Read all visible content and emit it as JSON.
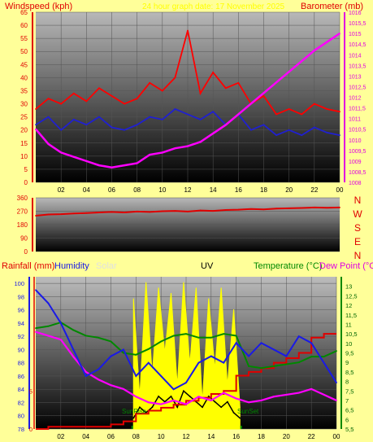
{
  "colors": {
    "background": "#ffff99",
    "wind": "#ff0000",
    "gust": "#ff0000",
    "avg_wind": "#2020d0",
    "barometer": "#ff00ff",
    "direction": "#e00000",
    "rain": "#e00000",
    "humidity": "#1a1ae6",
    "solar": "#ffff00",
    "uv": "#000000",
    "temperature": "#008800",
    "dewpoint": "#ff00ff",
    "title": "#ffff00"
  },
  "header": {
    "title": "24 hour graph date: 17 November 2025",
    "windspeed_label": "Windspeed (kph)",
    "barometer_label": "Barometer (mb)"
  },
  "compass_letters": [
    "N",
    "W",
    "S",
    "E",
    "N"
  ],
  "bottom_labels": {
    "rainfall": "Rainfall (mm)",
    "humidity": "Humidity",
    "solar": "Solar",
    "uv": "UV",
    "temperature": "Temperature (°C)",
    "dewpoint": "Dew Point (°C)",
    "sunrise": "SunRise",
    "sunset": "SunSet"
  },
  "chart_data": [
    {
      "type": "line",
      "title": "24 hour graph date: 17 November 2025",
      "x_ticks": [
        "02",
        "04",
        "06",
        "08",
        "10",
        "12",
        "14",
        "16",
        "18",
        "20",
        "22",
        "00"
      ],
      "ylabel": "Windspeed (kph)",
      "ylim": [
        0,
        65
      ],
      "y_ticks": [
        0,
        5,
        10,
        15,
        20,
        25,
        30,
        35,
        40,
        45,
        50,
        55,
        60,
        65
      ],
      "y2label": "Barometer (mb)",
      "y2lim": [
        1008,
        1016
      ],
      "y2_ticks": [
        "1008",
        "1008,5",
        "1009",
        "1009,5",
        "1010",
        "1010,5",
        "1011",
        "1011,5",
        "1012",
        "1012,5",
        "1013",
        "1013,5",
        "1014",
        "1014,5",
        "1015",
        "1015,5",
        "1016"
      ],
      "series": [
        {
          "name": "Windspeed (kph)",
          "axis": "left",
          "style": "gust",
          "x": [
            0,
            1,
            2,
            3,
            4,
            5,
            6,
            7,
            8,
            9,
            10,
            11,
            12,
            13,
            14,
            15,
            16,
            17,
            18,
            19,
            20,
            21,
            22,
            23,
            24
          ],
          "y": [
            28,
            32,
            30,
            34,
            31,
            36,
            33,
            30,
            32,
            38,
            35,
            40,
            58,
            34,
            42,
            36,
            38,
            30,
            33,
            26,
            28,
            26,
            30,
            28,
            27
          ]
        },
        {
          "name": "Windspeed (kph)",
          "axis": "left",
          "style": "avg",
          "x": [
            0,
            1,
            2,
            3,
            4,
            5,
            6,
            7,
            8,
            9,
            10,
            11,
            12,
            13,
            14,
            15,
            16,
            17,
            18,
            19,
            20,
            21,
            22,
            23,
            24
          ],
          "y": [
            22,
            25,
            20,
            24,
            22,
            25,
            21,
            20,
            22,
            25,
            24,
            28,
            26,
            24,
            27,
            22,
            26,
            20,
            22,
            18,
            20,
            18,
            21,
            19,
            18
          ]
        },
        {
          "name": "Barometer (mb)",
          "axis": "right",
          "x": [
            0,
            1,
            2,
            3,
            4,
            5,
            6,
            7,
            8,
            9,
            10,
            11,
            12,
            13,
            14,
            15,
            16,
            17,
            18,
            19,
            20,
            21,
            22,
            23,
            24
          ],
          "y": [
            1010.5,
            1009.8,
            1009.4,
            1009.2,
            1009.0,
            1008.8,
            1008.7,
            1008.8,
            1008.9,
            1009.3,
            1009.4,
            1009.6,
            1009.7,
            1009.9,
            1010.3,
            1010.7,
            1011.2,
            1011.7,
            1012.2,
            1012.7,
            1013.2,
            1013.7,
            1014.2,
            1014.6,
            1015.0
          ]
        }
      ]
    },
    {
      "type": "line",
      "ylim": [
        0,
        360
      ],
      "y_ticks": [
        0,
        90,
        180,
        270,
        360
      ],
      "series": [
        {
          "x": [
            0,
            1,
            2,
            3,
            4,
            5,
            6,
            7,
            8,
            9,
            10,
            11,
            12,
            13,
            14,
            15,
            16,
            17,
            18,
            19,
            20,
            21,
            22,
            23,
            24
          ],
          "y": [
            240,
            248,
            250,
            255,
            258,
            262,
            265,
            262,
            268,
            265,
            270,
            272,
            268,
            275,
            272,
            278,
            280,
            285,
            282,
            288,
            290,
            292,
            295,
            293,
            295
          ]
        }
      ]
    },
    {
      "type": "line",
      "x_ticks": [
        "02",
        "04",
        "06",
        "08",
        "10",
        "12",
        "14",
        "16",
        "18",
        "20",
        "22",
        "00"
      ],
      "rain_ylim": [
        0,
        20
      ],
      "rain_ticks": [
        0,
        5
      ],
      "humidity_ylim": [
        78,
        101
      ],
      "humidity_ticks": [
        78,
        80,
        82,
        84,
        86,
        88,
        90,
        92,
        94,
        96,
        98,
        100
      ],
      "temp_ylim": [
        5.5,
        13.5
      ],
      "temp_ticks": [
        "5,5",
        "6",
        "6,5",
        "7",
        "7,5",
        "8",
        "8,5",
        "9",
        "9,5",
        "10",
        "10,5",
        "11",
        "11,5",
        "12",
        "12,5",
        "13"
      ],
      "sunrise_hour": 7.7,
      "sunset_hour": 16.4,
      "series": [
        {
          "name": "Rainfall (mm)",
          "x": [
            0,
            1,
            2,
            3,
            4,
            5,
            6,
            7,
            8,
            9,
            10,
            11,
            12,
            13,
            14,
            15,
            16,
            17,
            18,
            19,
            20,
            21,
            22,
            23,
            24
          ],
          "y": [
            0,
            0.3,
            0.3,
            0.3,
            0.3,
            0.3,
            0.6,
            1.0,
            2.0,
            2.4,
            2.8,
            3.2,
            3.7,
            4.1,
            4.6,
            5.0,
            7.0,
            7.5,
            8.0,
            8.7,
            9.3,
            10.0,
            12.0,
            12.5,
            12.5
          ]
        },
        {
          "name": "Humidity",
          "x": [
            0,
            1,
            2,
            3,
            4,
            5,
            6,
            7,
            8,
            9,
            10,
            11,
            12,
            13,
            14,
            15,
            16,
            17,
            18,
            19,
            20,
            21,
            22,
            23,
            24
          ],
          "y": [
            99,
            97,
            94,
            90,
            86,
            87,
            89,
            90,
            86,
            88,
            86,
            84,
            85,
            88,
            89,
            88,
            91,
            89,
            91,
            90,
            89,
            92,
            91,
            88,
            85
          ]
        },
        {
          "name": "Temperature (°C)",
          "x": [
            0,
            1,
            2,
            3,
            4,
            5,
            6,
            7,
            8,
            9,
            10,
            11,
            12,
            13,
            14,
            15,
            16,
            17,
            18,
            19,
            20,
            21,
            22,
            23,
            24
          ],
          "y": [
            10.8,
            10.9,
            11.1,
            10.7,
            10.4,
            10.3,
            10.1,
            9.5,
            9.4,
            9.7,
            10.1,
            10.4,
            10.5,
            10.3,
            10.3,
            10.5,
            10.4,
            8.8,
            8.7,
            8.8,
            8.9,
            9.0,
            9.3,
            9.3,
            9.6
          ]
        },
        {
          "name": "Dew Point (°C)",
          "x": [
            0,
            1,
            2,
            3,
            4,
            5,
            6,
            7,
            8,
            9,
            10,
            11,
            12,
            13,
            14,
            15,
            16,
            17,
            18,
            19,
            20,
            21,
            22,
            23,
            24
          ],
          "y": [
            10.6,
            10.4,
            10.2,
            9.3,
            8.5,
            8.1,
            7.8,
            7.6,
            7.2,
            6.9,
            6.8,
            7.0,
            6.8,
            7.2,
            7.0,
            7.4,
            7.1,
            6.9,
            7.0,
            7.2,
            7.3,
            7.4,
            7.6,
            7.3,
            7.0
          ]
        },
        {
          "name": "Solar",
          "x": [
            7.8,
            8.3,
            8.8,
            9.3,
            9.8,
            10.3,
            10.8,
            11.3,
            11.8,
            12.3,
            12.8,
            13.3,
            13.8,
            14.3,
            14.8,
            15.3,
            15.8,
            16.3
          ],
          "y": [
            12.0,
            3.0,
            13.5,
            5.0,
            13.0,
            7.0,
            12.5,
            4.0,
            13.5,
            6.0,
            13.0,
            2.5,
            12.0,
            5.5,
            13.0,
            4.0,
            11.0,
            2.0
          ]
        },
        {
          "name": "UV",
          "x": [
            7.8,
            8.3,
            8.8,
            9.3,
            9.8,
            10.3,
            10.8,
            11.3,
            11.8,
            12.3,
            12.8,
            13.3,
            13.8,
            14.3,
            14.8,
            15.3,
            15.8,
            16.3
          ],
          "y": [
            1,
            2,
            1.5,
            2,
            3,
            2.5,
            3,
            2,
            3.5,
            3,
            2.5,
            2,
            3,
            2.5,
            2,
            2.5,
            1.5,
            1
          ]
        }
      ]
    }
  ]
}
